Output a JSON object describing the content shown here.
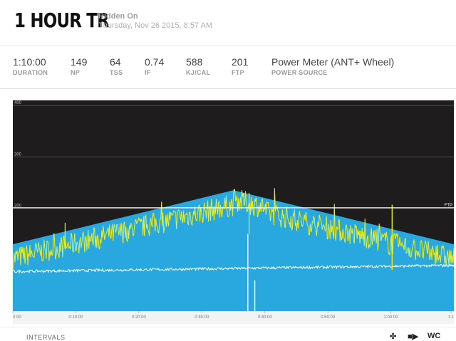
{
  "workout": {
    "title": "1 HOUR TR",
    "ridden_label": "Ridden On",
    "ridden_date": "Thursday, Nov 26 2015, 8:57 AM"
  },
  "stats": [
    {
      "value": "1:10:00",
      "label": "DURATION"
    },
    {
      "value": "149",
      "label": "NP"
    },
    {
      "value": "64",
      "label": "TSS"
    },
    {
      "value": "0.74",
      "label": "IF"
    },
    {
      "value": "588",
      "label": "KJ/CAL"
    },
    {
      "value": "201",
      "label": "FTP"
    },
    {
      "value": "Power Meter (ANT+ Wheel)",
      "label": "POWER SOURCE"
    }
  ],
  "chart_data": {
    "type": "area",
    "y_ticks": [
      "400",
      "300",
      "200"
    ],
    "ylim": [
      0,
      410
    ],
    "x_ticks": [
      "0:00",
      "0:10:00",
      "0:20:00",
      "0:30:00",
      "0:40:00",
      "0:50:00",
      "1:00:00",
      "1:1"
    ],
    "xlim_minutes": [
      0,
      70
    ],
    "ftp_label": "FTP",
    "ftp_value": 201,
    "target_power": {
      "x": [
        0,
        35,
        70
      ],
      "y": [
        130,
        235,
        130
      ]
    },
    "legend": "none",
    "grid": true,
    "colors": {
      "target": "#29a8e0",
      "power": "#ecee1a",
      "cadence": "#ffffff",
      "background": "#1f1c1d"
    }
  },
  "footer": {
    "intervals_label": "INTERVALS",
    "wc_label": "WC"
  }
}
